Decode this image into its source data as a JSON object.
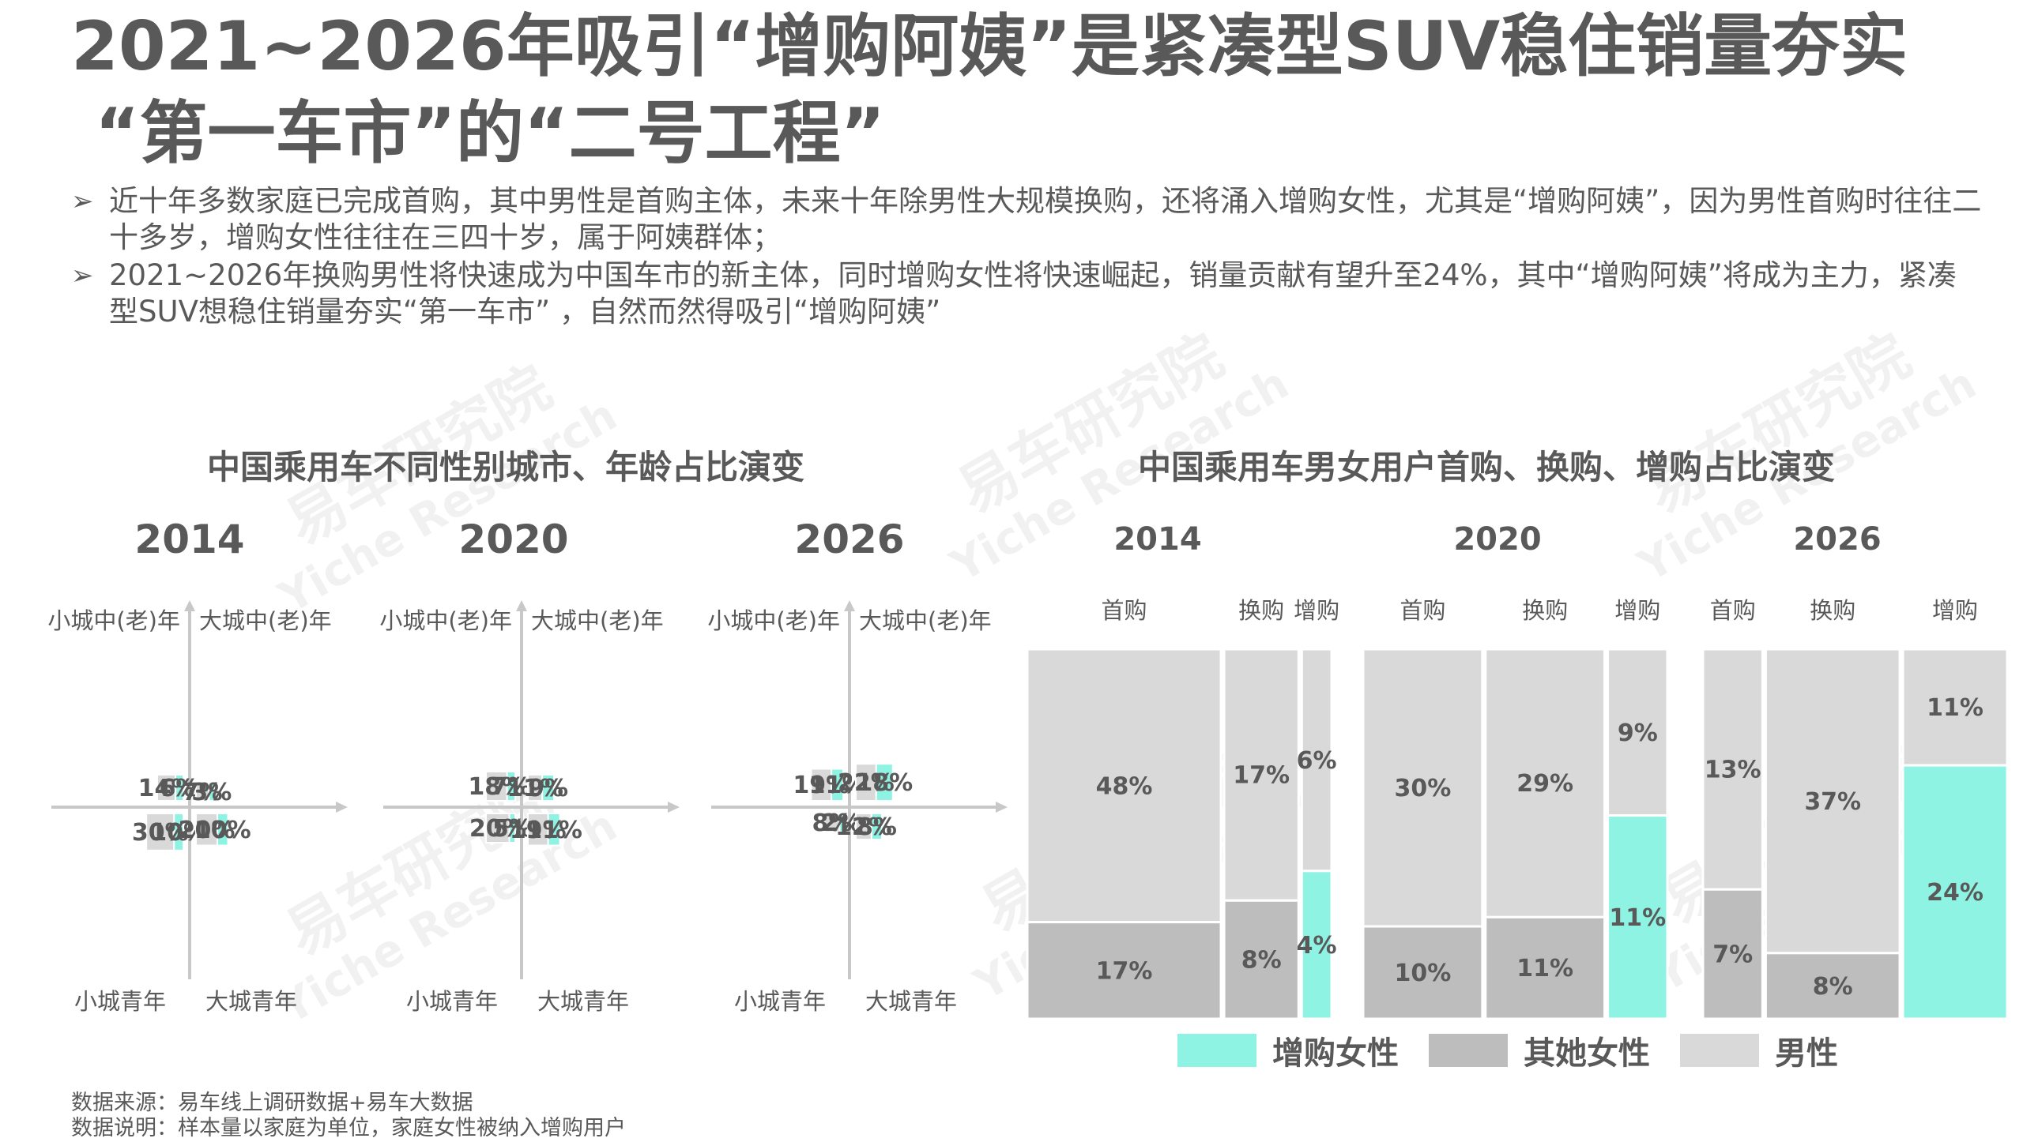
{
  "slide": {
    "title_line1": "2021~2026年吸引“增购阿姨”是紧凑型SUV稳住销量夯实",
    "title_line2": "“第一车市”的“二号工程”",
    "bullet_marker": "➢",
    "bullets": [
      "近十年多数家庭已完成首购，其中男性是首购主体，未来十年除男性大规模换购，还将涌入增购女性，尤其是“增购阿姨”，因为男性首购时往往二十多岁，增购女性往往在三四十岁，属于阿姨群体；",
      "2021~2026年换购男性将快速成为中国车市的新主体，同时增购女性将快速崛起，销量贡献有望升至24%，其中“增购阿姨”将成为主力，紧凑型SUV想稳住销量夯实“第一车市” ，自然而然得吸引“增购阿姨”"
    ],
    "watermark_cn": "易车研究院",
    "watermark_en": "Yiche Research",
    "footnotes": [
      "数据来源：易车线上调研数据+易车大数据",
      "数据说明：样本量以家庭为单位，家庭女性被纳入增购用户"
    ]
  },
  "colors": {
    "male": "#d9d9d9",
    "other_female": "#bdbdbd",
    "add_female": "#8ef3e3",
    "text": "#595959",
    "axis": "#c8c8c8"
  },
  "chart_data": [
    {
      "type": "bar",
      "subtype": "quadrant",
      "title": "中国乘用车不同性别城市、年龄占比演变",
      "quadrant_labels": {
        "top_left": "小城中(老)年",
        "top_right": "大城中(老)年",
        "bottom_left": "小城青年",
        "bottom_right": "大城青年"
      },
      "legend_series": [
        "男性",
        "增购女性"
      ],
      "panels": [
        {
          "year": "2014",
          "small_old": {
            "male": 14,
            "female": 6,
            "male_label": "14%",
            "female_label": "6%"
          },
          "big_old": {
            "male": 7,
            "female": 3,
            "male_label": "7%",
            "female_label": "3%"
          },
          "small_young": {
            "male": 30,
            "female": 10,
            "male_label": "30%",
            "female_label": "10%"
          },
          "big_young": {
            "male": 20,
            "female": 10,
            "male_label": "20%",
            "female_label": "10%"
          }
        },
        {
          "year": "2020",
          "small_old": {
            "male": 18,
            "female": 7,
            "male_label": "18%",
            "female_label": "7%"
          },
          "big_old": {
            "male": 11,
            "female": 9,
            "male_label": "11%",
            "female_label": "9%"
          },
          "small_young": {
            "male": 20,
            "female": 5,
            "male_label": "20%",
            "female_label": "5%"
          },
          "big_young": {
            "male": 19,
            "female": 11,
            "male_label": "19%",
            "female_label": "11%"
          }
        },
        {
          "year": "2026",
          "small_old": {
            "male": 19,
            "female": 11,
            "male_label": "19%",
            "female_label": "11%"
          },
          "big_old": {
            "male": 22,
            "female": 18,
            "male_label": "22%",
            "female_label": "18%"
          },
          "small_young": {
            "male": 8,
            "female": 2,
            "male_label": "8%",
            "female_label": "2%"
          },
          "big_young": {
            "male": 12,
            "female": 8,
            "male_label": "12%",
            "female_label": "8%"
          }
        }
      ]
    },
    {
      "type": "bar",
      "subtype": "mekko",
      "title": "中国乘用车男女用户首购、换购、增购占比演变",
      "legend": [
        {
          "name": "增购女性",
          "key": "add_female"
        },
        {
          "name": "其她女性",
          "key": "other_female"
        },
        {
          "name": "男性",
          "key": "male"
        }
      ],
      "panels": [
        {
          "year": "2014",
          "columns": [
            {
              "name": "首购",
              "segments": [
                {
                  "key": "male",
                  "value": 48,
                  "label": "48%"
                },
                {
                  "key": "other_female",
                  "value": 17,
                  "label": "17%"
                }
              ]
            },
            {
              "name": "换购",
              "segments": [
                {
                  "key": "male",
                  "value": 17,
                  "label": "17%"
                },
                {
                  "key": "other_female",
                  "value": 8,
                  "label": "8%"
                }
              ]
            },
            {
              "name": "增购",
              "segments": [
                {
                  "key": "male",
                  "value": 6,
                  "label": "6%"
                },
                {
                  "key": "add_female",
                  "value": 4,
                  "label": "4%"
                }
              ]
            }
          ]
        },
        {
          "year": "2020",
          "columns": [
            {
              "name": "首购",
              "segments": [
                {
                  "key": "male",
                  "value": 30,
                  "label": "30%"
                },
                {
                  "key": "other_female",
                  "value": 10,
                  "label": "10%"
                }
              ]
            },
            {
              "name": "换购",
              "segments": [
                {
                  "key": "male",
                  "value": 29,
                  "label": "29%"
                },
                {
                  "key": "other_female",
                  "value": 11,
                  "label": "11%"
                }
              ]
            },
            {
              "name": "增购",
              "segments": [
                {
                  "key": "male",
                  "value": 9,
                  "label": "9%"
                },
                {
                  "key": "add_female",
                  "value": 11,
                  "label": "11%"
                }
              ]
            }
          ]
        },
        {
          "year": "2026",
          "columns": [
            {
              "name": "首购",
              "segments": [
                {
                  "key": "male",
                  "value": 13,
                  "label": "13%"
                },
                {
                  "key": "other_female",
                  "value": 7,
                  "label": "7%"
                }
              ]
            },
            {
              "name": "换购",
              "segments": [
                {
                  "key": "male",
                  "value": 37,
                  "label": "37%"
                },
                {
                  "key": "other_female",
                  "value": 8,
                  "label": "8%"
                }
              ]
            },
            {
              "name": "增购",
              "segments": [
                {
                  "key": "male",
                  "value": 11,
                  "label": "11%"
                },
                {
                  "key": "add_female",
                  "value": 24,
                  "label": "24%"
                }
              ]
            }
          ]
        }
      ]
    }
  ]
}
